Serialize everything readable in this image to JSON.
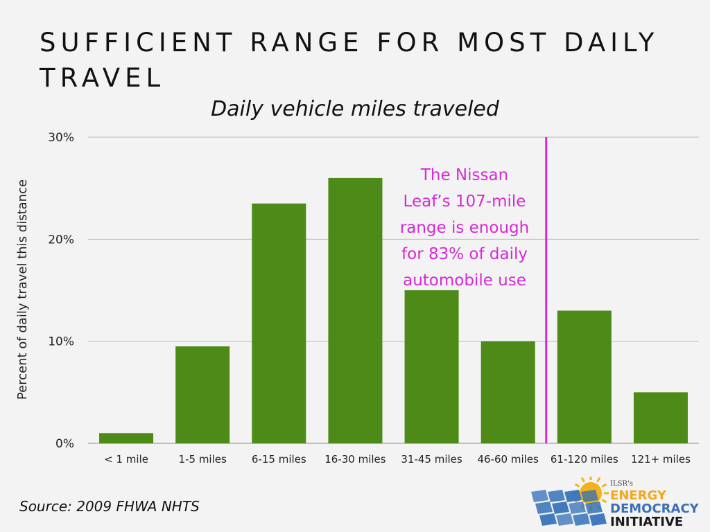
{
  "slide_title": "SUFFICIENT RANGE FOR MOST DAILY TRAVEL",
  "source": "Source: 2009 FHWA NHTS",
  "chart_data": {
    "type": "bar",
    "title": "Daily vehicle miles traveled",
    "xlabel": "",
    "ylabel": "Percent of daily travel this distance",
    "categories": [
      "< 1 mile",
      "1-5 miles",
      "6-15 miles",
      "16-30 miles",
      "31-45 miles",
      "46-60 miles",
      "61-120 miles",
      "121+ miles"
    ],
    "values": [
      1,
      9.5,
      23.5,
      26,
      15,
      10,
      13,
      5
    ],
    "y_ticks": [
      0,
      10,
      20,
      30
    ],
    "y_tick_labels": [
      "0%",
      "10%",
      "20%",
      "30%"
    ],
    "ylim": [
      0,
      30
    ],
    "grid": true,
    "bar_color": "#4e8a17",
    "marker_line": {
      "between_categories": [
        "46-60 miles",
        "61-120 miles"
      ],
      "color": "#d52ad6"
    },
    "annotation": {
      "lines": [
        "The Nissan",
        "Leaf’s 107-mile",
        "range is enough",
        "for 83% of daily",
        "automobile use"
      ],
      "color": "#d52ad6"
    }
  },
  "logo": {
    "brand": "ILSR's",
    "lines": [
      "ENERGY",
      "DEMOCRACY",
      "INITIATIVE"
    ],
    "colors": [
      "#f2a81d",
      "#3a6fb6",
      "#1a1a1a"
    ],
    "panel_color": "#2f6fb8",
    "sun_color": "#f2b21d"
  }
}
